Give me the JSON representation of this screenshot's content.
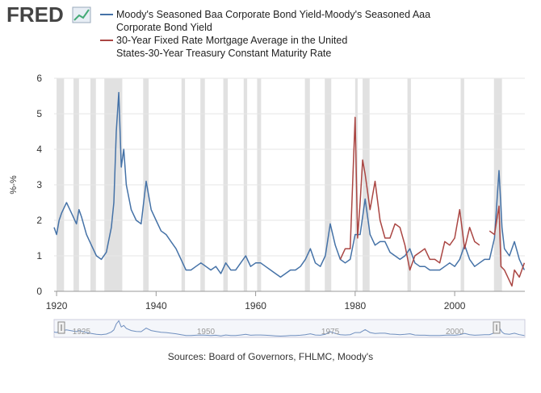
{
  "logo": "FRED",
  "chart_data": {
    "type": "line",
    "y_label": "%-%",
    "source": "Sources: Board of Governors, FHLMC, Moody's",
    "xlim": [
      1919.5,
      2014.1
    ],
    "xticks": [
      1920,
      1940,
      1960,
      1980,
      2000
    ],
    "ylim": [
      0,
      6
    ],
    "yticks": [
      0,
      1,
      2,
      3,
      4,
      5,
      6
    ],
    "shaded_periods": [
      [
        1920,
        1921.5
      ],
      [
        1923.4,
        1924.5
      ],
      [
        1926.8,
        1927.9
      ],
      [
        1929.6,
        1933.2
      ],
      [
        1937.4,
        1938.5
      ],
      [
        1945.1,
        1945.8
      ],
      [
        1948.9,
        1949.8
      ],
      [
        1953.5,
        1954.4
      ],
      [
        1957.6,
        1958.3
      ],
      [
        1960.3,
        1961.1
      ],
      [
        1969.9,
        1970.9
      ],
      [
        1973.9,
        1975.2
      ],
      [
        1980,
        1980.5
      ],
      [
        1981.5,
        1982.9
      ],
      [
        1990.5,
        1991.2
      ],
      [
        2001.2,
        2001.9
      ],
      [
        2007.9,
        2009.5
      ]
    ],
    "navigator_xticks": [
      1925,
      1950,
      1975,
      2000
    ],
    "series": [
      {
        "name": "Moody's Seasoned Baa Corporate Bond Yield-Moody's Seasoned Aaa Corporate Bond Yield",
        "color": "#4572a7",
        "x": [
          1919.5,
          1920,
          1920.5,
          1921,
          1922,
          1923,
          1924,
          1924.5,
          1925,
          1926,
          1927,
          1928,
          1929,
          1930,
          1931,
          1931.5,
          1932,
          1932.5,
          1933,
          1933.5,
          1934,
          1935,
          1936,
          1937,
          1938,
          1939,
          1940,
          1941,
          1942,
          1943,
          1944,
          1945,
          1946,
          1947,
          1948,
          1949,
          1950,
          1951,
          1952,
          1953,
          1954,
          1955,
          1956,
          1957,
          1958,
          1959,
          1960,
          1961,
          1962,
          1963,
          1964,
          1965,
          1966,
          1967,
          1968,
          1969,
          1970,
          1971,
          1972,
          1973,
          1974,
          1975,
          1976,
          1977,
          1978,
          1979,
          1980,
          1981,
          1982,
          1983,
          1984,
          1985,
          1986,
          1987,
          1988,
          1989,
          1990,
          1991,
          1992,
          1993,
          1994,
          1995,
          1996,
          1997,
          1998,
          1999,
          2000,
          2001,
          2002,
          2003,
          2004,
          2005,
          2006,
          2007,
          2008,
          2008.9,
          2009.5,
          2010,
          2011,
          2012,
          2013,
          2014
        ],
        "values": [
          1.8,
          1.6,
          2.0,
          2.2,
          2.5,
          2.2,
          1.9,
          2.3,
          2.1,
          1.6,
          1.3,
          1.0,
          0.9,
          1.1,
          1.8,
          2.5,
          4.5,
          5.6,
          3.5,
          4.0,
          3.0,
          2.3,
          2.0,
          1.9,
          3.1,
          2.3,
          2.0,
          1.7,
          1.6,
          1.4,
          1.2,
          0.9,
          0.6,
          0.6,
          0.7,
          0.8,
          0.7,
          0.6,
          0.7,
          0.5,
          0.8,
          0.6,
          0.6,
          0.8,
          1.0,
          0.7,
          0.8,
          0.8,
          0.7,
          0.6,
          0.5,
          0.4,
          0.5,
          0.6,
          0.6,
          0.7,
          0.9,
          1.2,
          0.8,
          0.7,
          1.0,
          1.9,
          1.3,
          0.9,
          0.8,
          0.9,
          1.6,
          1.6,
          2.6,
          1.6,
          1.3,
          1.4,
          1.4,
          1.1,
          1.0,
          0.9,
          1.0,
          1.2,
          0.8,
          0.7,
          0.7,
          0.6,
          0.6,
          0.6,
          0.7,
          0.8,
          0.7,
          0.9,
          1.3,
          0.9,
          0.7,
          0.8,
          0.9,
          0.9,
          1.5,
          3.4,
          1.8,
          1.2,
          1.0,
          1.4,
          0.9,
          0.6
        ]
      },
      {
        "name": "30-Year Fixed Rate Mortgage Average in the United States-30-Year Treasury Constant Maturity Rate",
        "color": "#aa4643",
        "x": [
          1977,
          1978,
          1979,
          1980,
          1980.5,
          1981,
          1981.5,
          1982,
          1983,
          1984,
          1985,
          1986,
          1987,
          1988,
          1989,
          1990,
          1991,
          1992,
          1993,
          1994,
          1995,
          1996,
          1997,
          1998,
          1999,
          2000,
          2001,
          2002,
          2003,
          2004,
          2005,
          2006,
          2007,
          2008,
          2008.9,
          2009.3,
          2010,
          2011,
          2011.5,
          2012,
          2013,
          2014
        ],
        "values": [
          0.9,
          1.2,
          1.2,
          4.9,
          1.5,
          2.5,
          3.7,
          3.3,
          2.3,
          3.1,
          2.0,
          1.5,
          1.5,
          1.9,
          1.8,
          1.3,
          0.6,
          1.0,
          1.1,
          1.2,
          0.9,
          0.9,
          0.8,
          1.4,
          1.3,
          1.5,
          2.3,
          1.2,
          1.8,
          1.4,
          1.3,
          null,
          1.7,
          1.6,
          2.4,
          0.7,
          0.6,
          0.3,
          0.15,
          0.6,
          0.4,
          0.8
        ]
      }
    ]
  }
}
